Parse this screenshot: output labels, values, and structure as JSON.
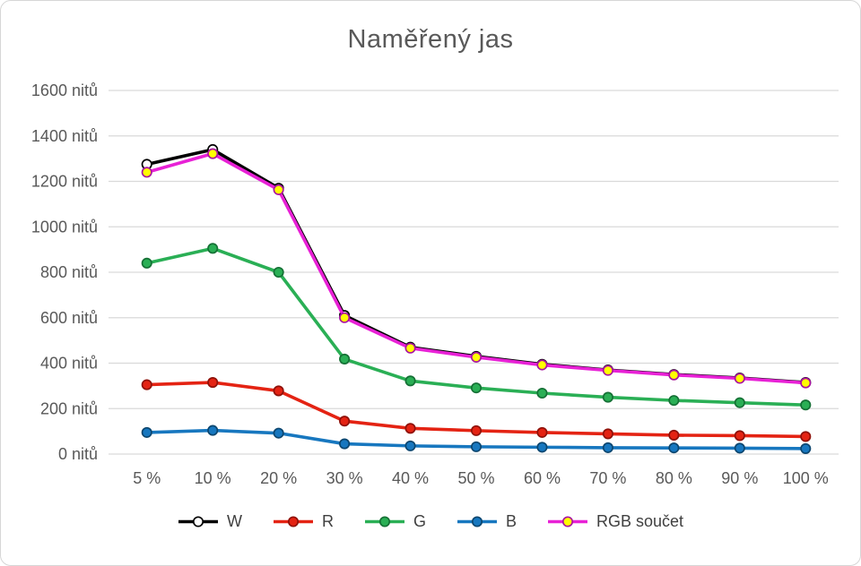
{
  "chart_data": {
    "type": "line",
    "title": "Naměřený jas",
    "categories": [
      "5 %",
      "10 %",
      "20 %",
      "30 %",
      "40 %",
      "50 %",
      "60 %",
      "70 %",
      "80 %",
      "90 %",
      "100 %"
    ],
    "xlabel": "",
    "ylabel": "",
    "ylim": [
      0,
      1600
    ],
    "grid": true,
    "grid_color": "#d9d9d9",
    "axis_label_color": "#595959",
    "legend_position": "bottom",
    "y_ticks": [
      {
        "value": 0,
        "label": "0 nitů"
      },
      {
        "value": 200,
        "label": "200 nitů"
      },
      {
        "value": 400,
        "label": "400 nitů"
      },
      {
        "value": 600,
        "label": "600 nitů"
      },
      {
        "value": 800,
        "label": "800 nitů"
      },
      {
        "value": 1000,
        "label": "1000 nitů"
      },
      {
        "value": 1200,
        "label": "1200 nitů"
      },
      {
        "value": 1400,
        "label": "1400 nitů"
      },
      {
        "value": 1600,
        "label": "1600 nitů"
      }
    ],
    "series": [
      {
        "id": "w",
        "name": "W",
        "color": "#000000",
        "marker_fill": "#ffffff",
        "marker_stroke": "#000000",
        "values": [
          1275,
          1340,
          1170,
          610,
          470,
          430,
          395,
          370,
          350,
          335,
          315
        ]
      },
      {
        "id": "r",
        "name": "R",
        "color": "#e42313",
        "marker_fill": "#e42313",
        "marker_stroke": "#8f1109",
        "values": [
          305,
          315,
          278,
          145,
          113,
          103,
          95,
          89,
          83,
          81,
          77
        ]
      },
      {
        "id": "g",
        "name": "G",
        "color": "#2aaf55",
        "marker_fill": "#2aaf55",
        "marker_stroke": "#157035",
        "values": [
          840,
          905,
          800,
          418,
          322,
          291,
          268,
          250,
          236,
          226,
          216
        ]
      },
      {
        "id": "b",
        "name": "B",
        "color": "#1777bf",
        "marker_fill": "#1777bf",
        "marker_stroke": "#0c466f",
        "values": [
          95,
          104,
          92,
          45,
          36,
          32,
          30,
          28,
          27,
          26,
          24
        ]
      },
      {
        "id": "rgb",
        "name": "RGB součet",
        "color": "#e821d6",
        "marker_fill": "#ffff00",
        "marker_stroke": "#a913a0",
        "values": [
          1240,
          1322,
          1163,
          600,
          466,
          426,
          392,
          368,
          348,
          333,
          313
        ]
      }
    ]
  }
}
